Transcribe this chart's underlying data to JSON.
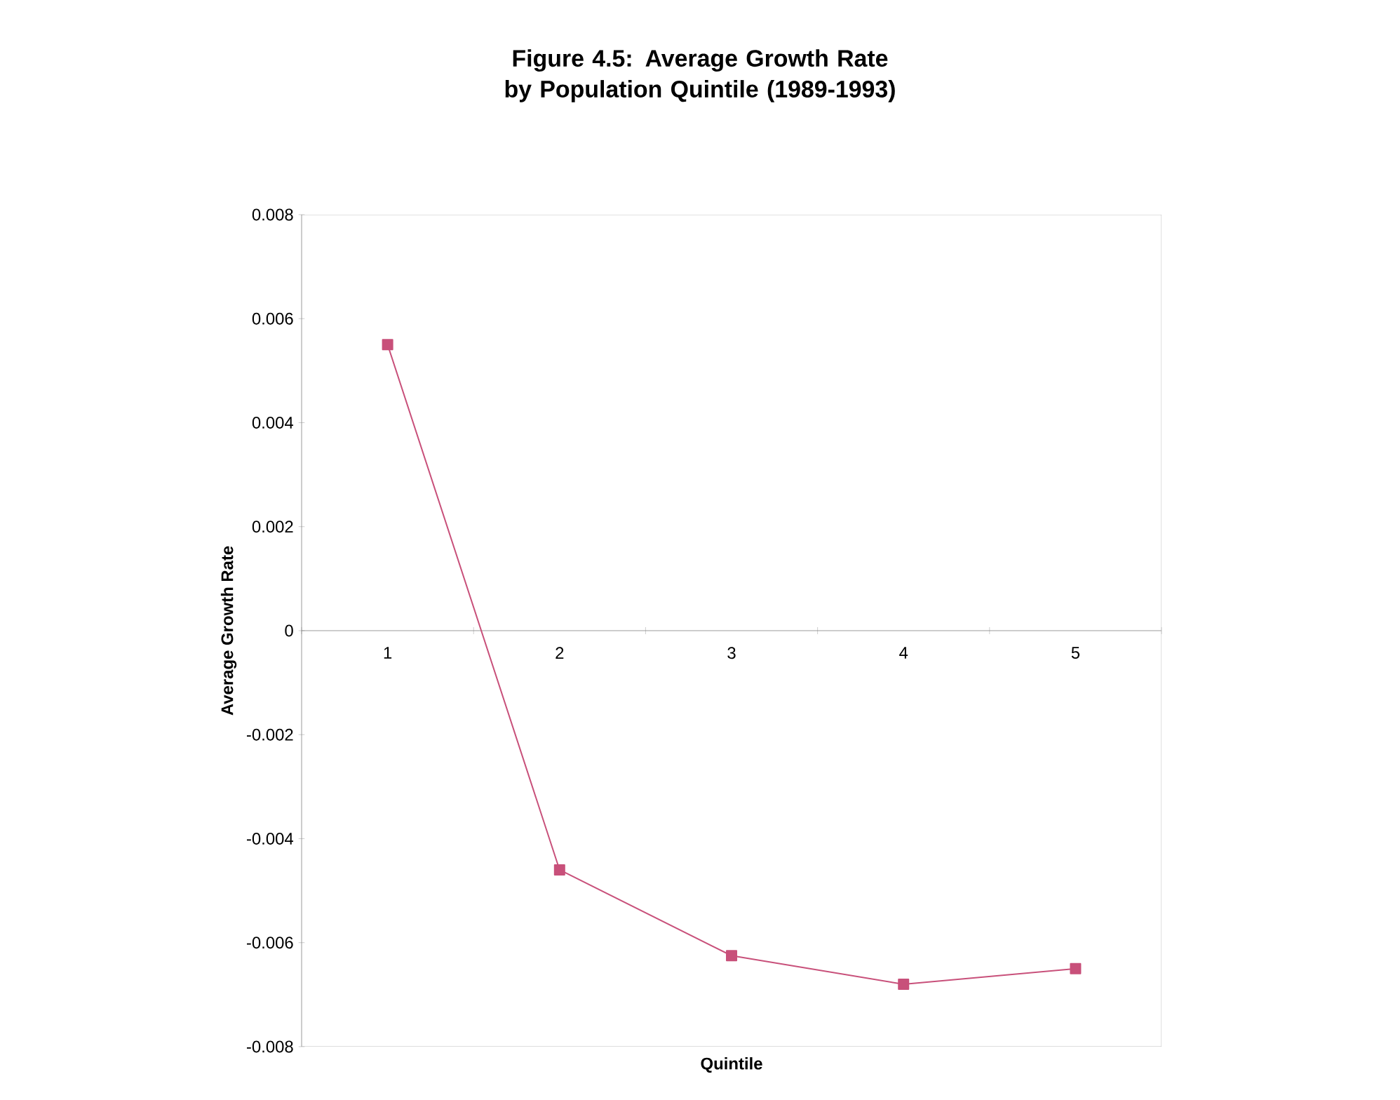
{
  "chart_data": {
    "type": "line",
    "title": "Figure 4.5: Average Growth Rate by Population Quintile (1989-1993)",
    "xlabel": "Quintile",
    "ylabel": "Average Growth Rate",
    "categories": [
      "1",
      "2",
      "3",
      "4",
      "5"
    ],
    "series": [
      {
        "color": "#c8507a",
        "values": [
          0.0055,
          -0.0046,
          -0.00625,
          -0.0068,
          -0.0065
        ]
      }
    ],
    "ylim": [
      -0.008,
      0.008
    ],
    "yticks": [
      {
        "value": -0.008,
        "label": "-0.008"
      },
      {
        "value": -0.006,
        "label": "-0.006"
      },
      {
        "value": -0.004,
        "label": "-0.004"
      },
      {
        "value": -0.002,
        "label": "-0.002"
      },
      {
        "value": 0,
        "label": "0"
      },
      {
        "value": 0.002,
        "label": "0.002"
      },
      {
        "value": 0.004,
        "label": "0.004"
      },
      {
        "value": 0.006,
        "label": "0.006"
      },
      {
        "value": 0.008,
        "label": "0.008"
      }
    ],
    "marker": "square"
  }
}
